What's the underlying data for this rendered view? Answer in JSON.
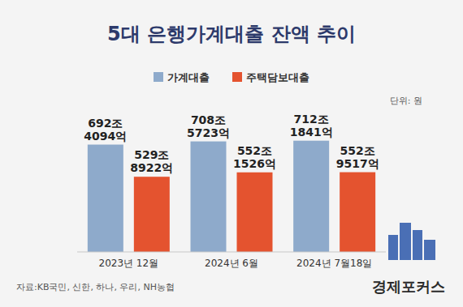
{
  "chart_data": {
    "type": "bar",
    "title": "5대 은행가계대출 잔액 추이",
    "unit_note": "단위: 원",
    "source": "자료:KB국민, 신한, 하나, 우리, NH농협",
    "logo": "경제포커스",
    "categories": [
      "2023년 12월",
      "2024년 6월",
      "2024년 7월18일"
    ],
    "series": [
      {
        "name": "가계대출",
        "color": "#8eaacb",
        "values": [
          692.4094,
          708.5723,
          712.1841
        ],
        "value_labels": [
          "692조 4094억",
          "708조 5723억",
          "712조 1841억"
        ]
      },
      {
        "name": "주택담보대출",
        "color": "#e4532f",
        "values": [
          529.8922,
          552.1526,
          552.9517
        ],
        "value_labels": [
          "529조 8922억",
          "552조 1526억",
          "552조 9517억"
        ]
      }
    ],
    "ylim": [
      150,
      760
    ],
    "data_labels": true,
    "tick_labels": "x",
    "legend": "top",
    "grid": false
  }
}
